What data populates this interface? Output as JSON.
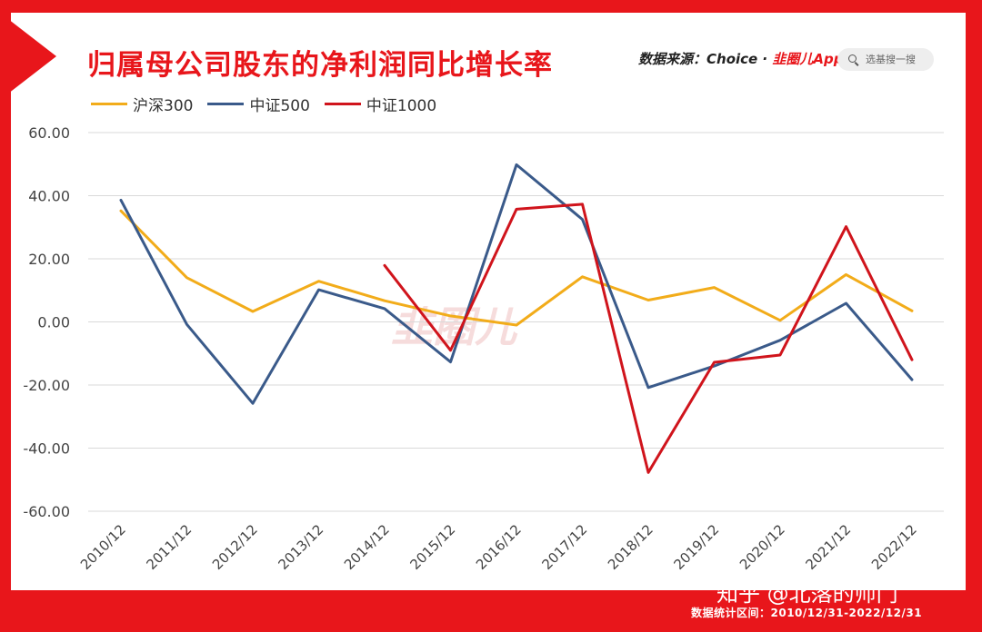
{
  "header": {
    "title": "归属母公司股东的净利润同比增长率",
    "source_label": "数据来源：Choice · ",
    "source_brand": "韭圈儿App",
    "search_placeholder": "选基搜一搜"
  },
  "footer": {
    "period": "数据统计区间：2010/12/31-2022/12/31",
    "watermark": "知乎 @北落的师门"
  },
  "logo_watermark": "韭圈儿",
  "colors": {
    "frame": "#e8161b",
    "hs300": "#f2ac1a",
    "zz500": "#3a5a8a",
    "zz1000": "#d0141c",
    "grid": "#d9d9d9"
  },
  "chart_data": {
    "type": "line",
    "title": "归属母公司股东的净利润同比增长率",
    "categories": [
      "2010/12",
      "2011/12",
      "2012/12",
      "2013/12",
      "2014/12",
      "2015/12",
      "2016/12",
      "2017/12",
      "2018/12",
      "2019/12",
      "2020/12",
      "2021/12",
      "2022/12"
    ],
    "ylim": [
      -60,
      60
    ],
    "yticks": [
      "60.00",
      "40.00",
      "20.00",
      "0.00",
      "-20.00",
      "-40.00",
      "-60.00"
    ],
    "grid": true,
    "legend_position": "top-left",
    "series": [
      {
        "name": "沪深300",
        "color": "#f2ac1a",
        "values": [
          35.2,
          14.0,
          3.3,
          12.9,
          6.7,
          1.9,
          -1.0,
          14.3,
          6.9,
          10.9,
          0.5,
          15.0,
          3.5
        ]
      },
      {
        "name": "中证500",
        "color": "#3a5a8a",
        "values": [
          38.6,
          -0.8,
          -25.8,
          10.2,
          4.2,
          -12.7,
          49.8,
          32.5,
          -20.8,
          -14.0,
          -5.8,
          5.9,
          -18.3
        ]
      },
      {
        "name": "中证1000",
        "color": "#d0141c",
        "values": [
          null,
          null,
          null,
          null,
          17.9,
          -9.0,
          35.7,
          37.3,
          -47.7,
          -12.8,
          -10.5,
          30.2,
          -12.0
        ]
      }
    ]
  }
}
